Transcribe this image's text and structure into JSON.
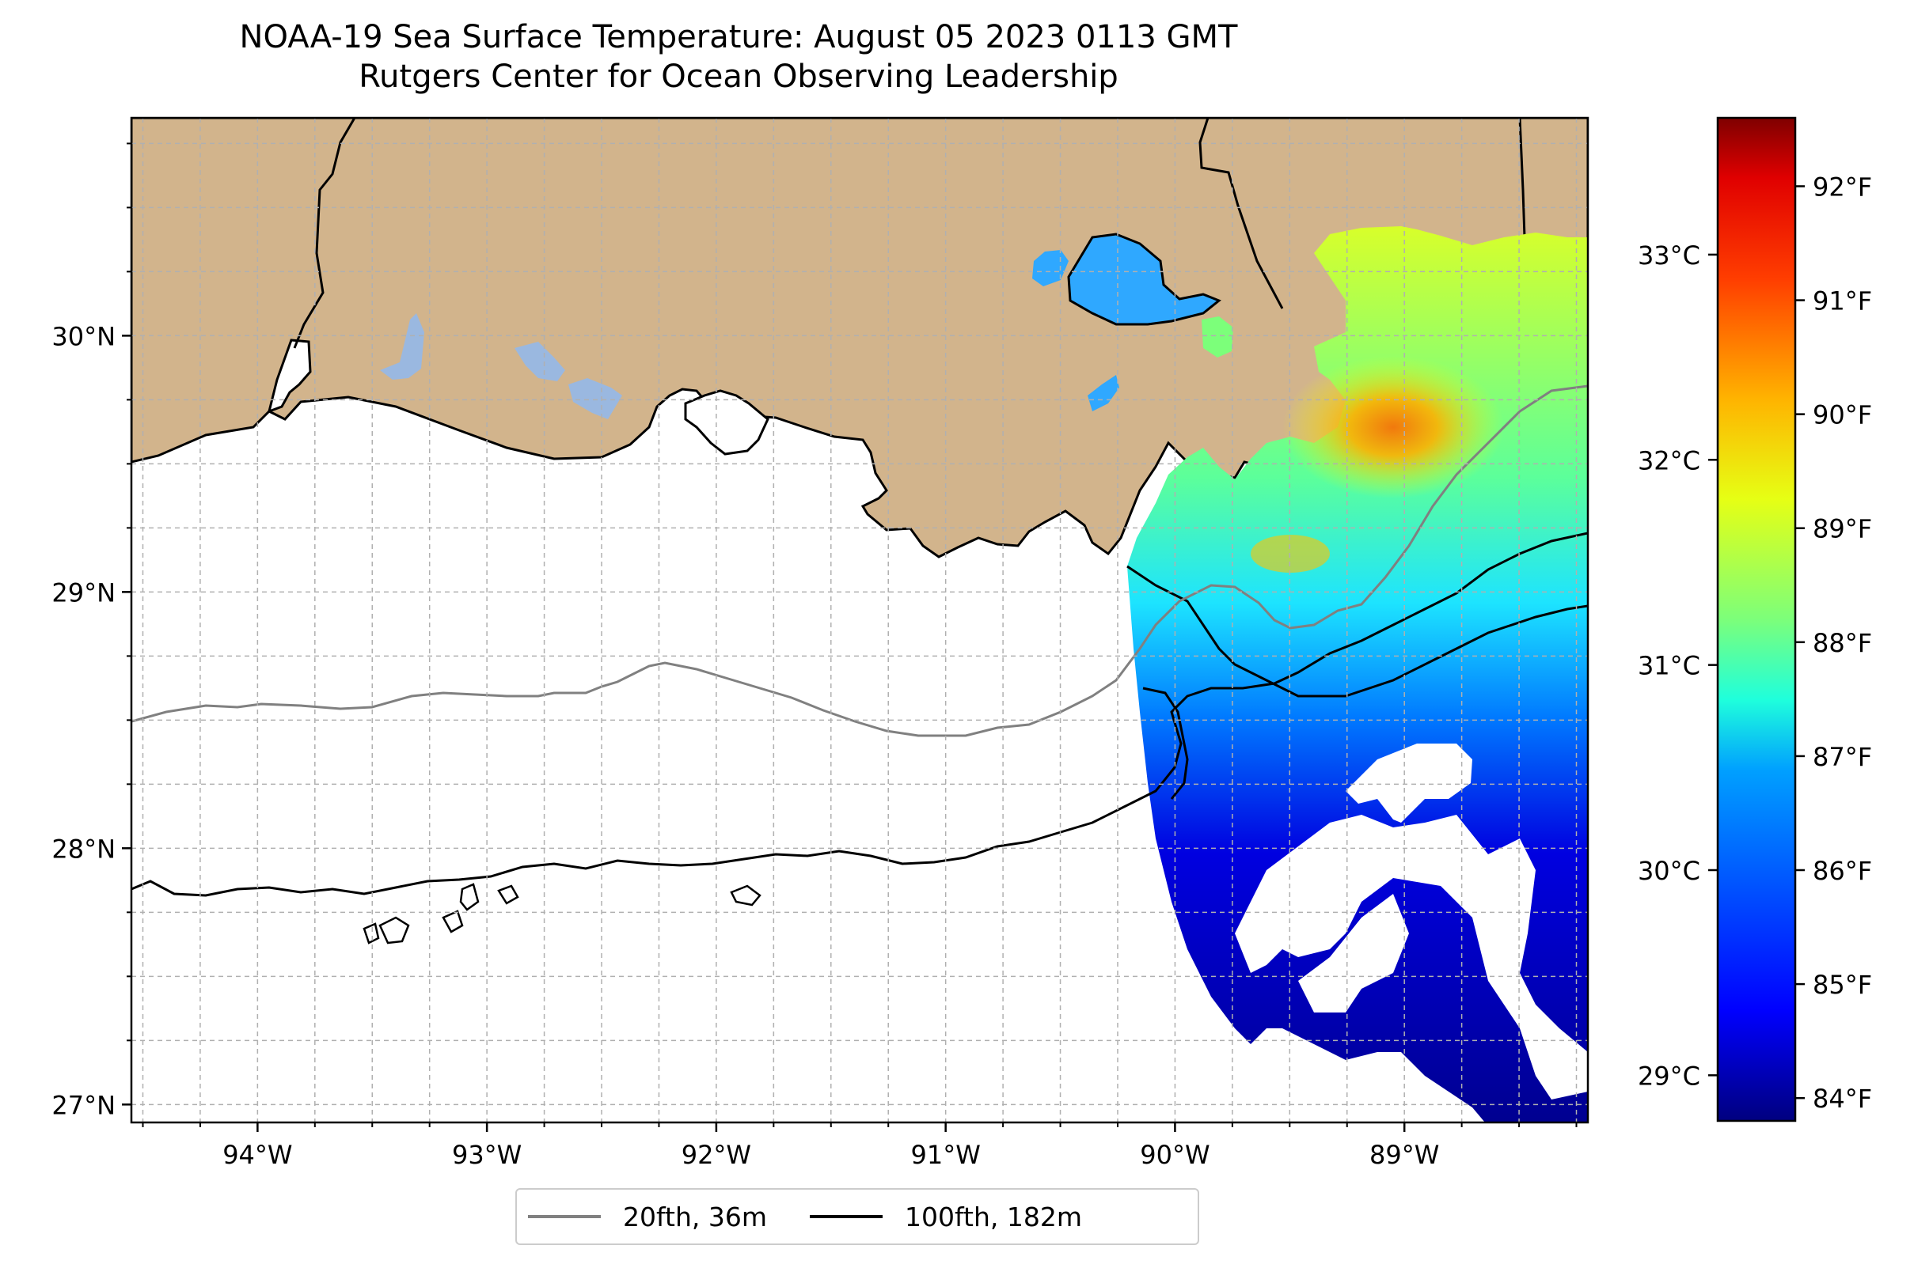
{
  "title": {
    "line1": "NOAA-19 Sea Surface Temperature: August 05 2023 0113 GMT",
    "line2": "Rutgers Center for Ocean Observing Leadership"
  },
  "map": {
    "lon_range": [
      -94.55,
      -88.2
    ],
    "lat_range": [
      26.93,
      30.85
    ],
    "lon_ticks": [
      {
        "value": -94,
        "label": "94°W"
      },
      {
        "value": -93,
        "label": "93°W"
      },
      {
        "value": -92,
        "label": "92°W"
      },
      {
        "value": -91,
        "label": "91°W"
      },
      {
        "value": -90,
        "label": "90°W"
      },
      {
        "value": -89,
        "label": "89°W"
      }
    ],
    "lat_ticks": [
      {
        "value": 30,
        "label": "30°N"
      },
      {
        "value": 29,
        "label": "29°N"
      },
      {
        "value": 28,
        "label": "28°N"
      },
      {
        "value": 27,
        "label": "27°N"
      }
    ],
    "gridlines": "dashed",
    "colors": {
      "land": "#d2b48c",
      "ocean": "#ffffff",
      "inland_water": "#9ab8e0",
      "grid": "#b0b0b0"
    }
  },
  "colorbar": {
    "colormap": "jet",
    "f_ticks": [
      "92°F",
      "91°F",
      "90°F",
      "89°F",
      "88°F",
      "87°F",
      "86°F",
      "85°F",
      "84°F"
    ],
    "c_ticks": [
      "33°C",
      "32°C",
      "31°C",
      "30°C",
      "29°C"
    ],
    "min_f": 83.8,
    "max_f": 92.6
  },
  "legend": {
    "items": [
      {
        "label": "20fth, 36m",
        "color": "#808080"
      },
      {
        "label": "100fth, 182m",
        "color": "#000000"
      }
    ]
  }
}
